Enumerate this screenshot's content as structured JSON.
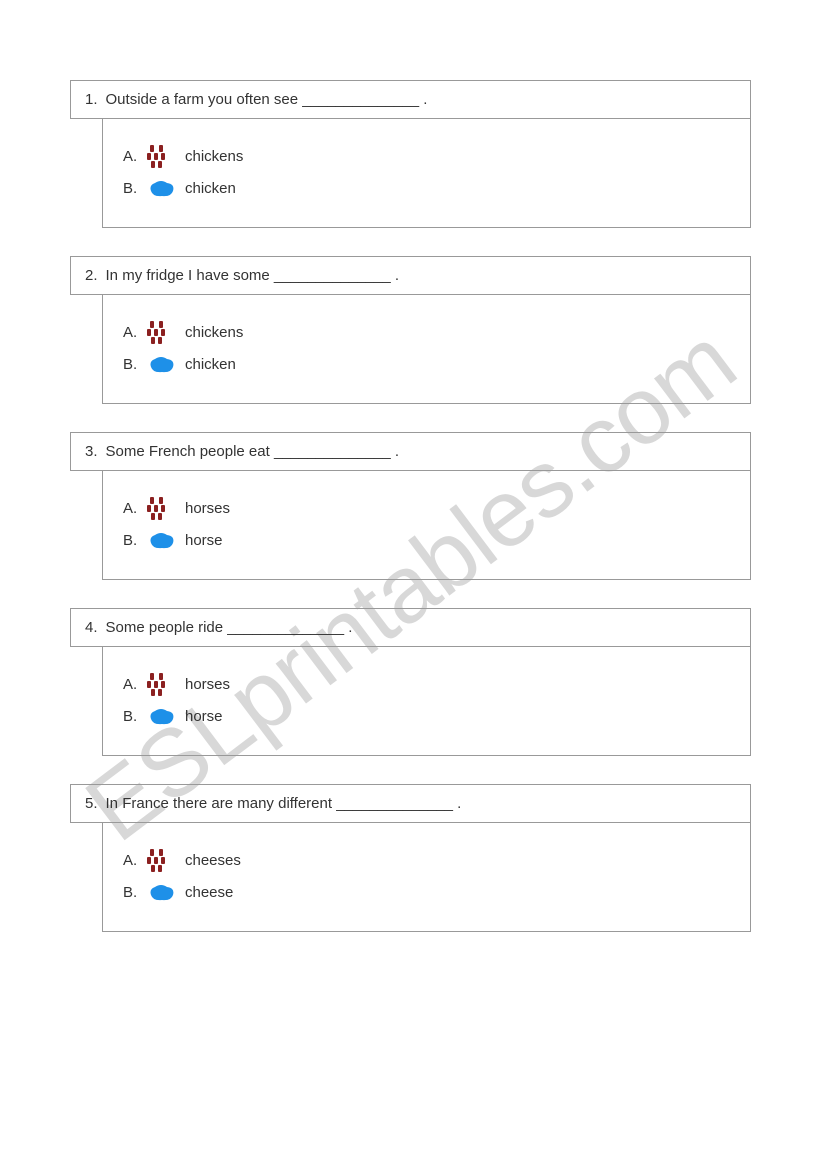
{
  "watermark": "ESLprintables.com",
  "questions": [
    {
      "number": "1.",
      "text": "Outside a farm you often see ______________ .",
      "options": [
        {
          "letter": "A.",
          "icon": "countable",
          "label": "chickens"
        },
        {
          "letter": "B.",
          "icon": "uncountable",
          "label": "chicken"
        }
      ]
    },
    {
      "number": "2.",
      "text": "In my fridge I have some ______________ .",
      "options": [
        {
          "letter": "A.",
          "icon": "countable",
          "label": "chickens"
        },
        {
          "letter": "B.",
          "icon": "uncountable",
          "label": "chicken"
        }
      ]
    },
    {
      "number": "3.",
      "text": "Some French people eat ______________ .",
      "options": [
        {
          "letter": "A.",
          "icon": "countable",
          "label": "horses"
        },
        {
          "letter": "B.",
          "icon": "uncountable",
          "label": "horse"
        }
      ]
    },
    {
      "number": "4.",
      "text": "Some people ride ______________ .",
      "options": [
        {
          "letter": "A.",
          "icon": "countable",
          "label": "horses"
        },
        {
          "letter": "B.",
          "icon": "uncountable",
          "label": "horse"
        }
      ]
    },
    {
      "number": "5.",
      "text": "In France there are many different ______________ .",
      "options": [
        {
          "letter": "A.",
          "icon": "countable",
          "label": "cheeses"
        },
        {
          "letter": "B.",
          "icon": "uncountable",
          "label": "cheese"
        }
      ]
    }
  ],
  "colors": {
    "countable_icon": "#8b2020",
    "uncountable_icon": "#1e90e8",
    "border": "#999999",
    "text": "#333333",
    "watermark": "#d8d8d8",
    "background": "#ffffff"
  }
}
